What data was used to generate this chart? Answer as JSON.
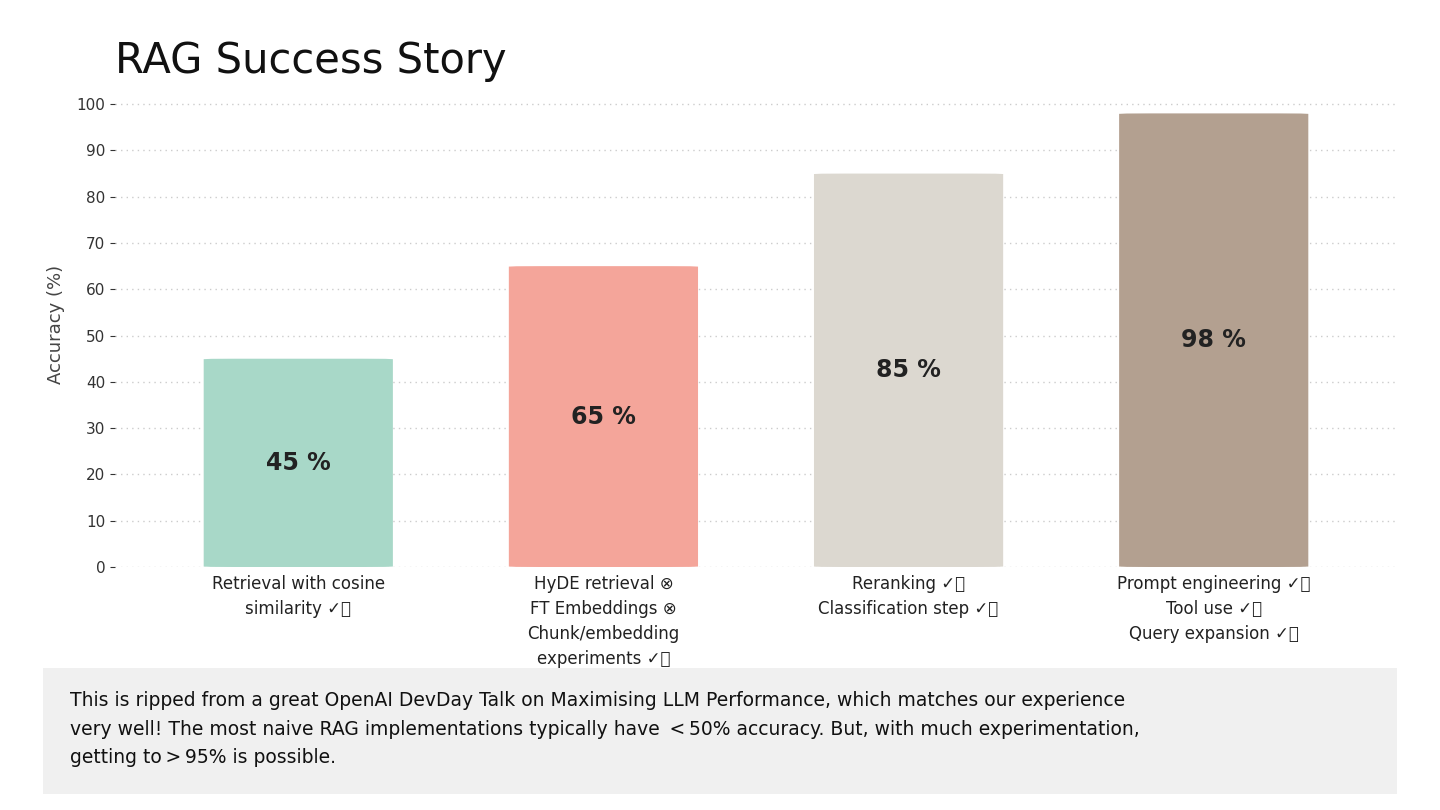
{
  "title": "RAG Success Story",
  "title_fontsize": 30,
  "title_fontweight": "normal",
  "values": [
    45,
    65,
    85,
    98
  ],
  "bar_colors": [
    "#a8d8c8",
    "#f4a59a",
    "#dcd8d0",
    "#b3a090"
  ],
  "bar_labels": [
    "45 %",
    "65 %",
    "85 %",
    "98 %"
  ],
  "bar_label_fontsize": 17,
  "ylabel": "Accuracy (%)",
  "ylim": [
    0,
    105
  ],
  "yticks": [
    0,
    10,
    20,
    30,
    40,
    50,
    60,
    70,
    80,
    90,
    100
  ],
  "footnote_line1": "This is ripped from a great OpenAI DevDay Talk on Maximising LLM Performance, which matches our experience",
  "footnote_line2": "very well! The most naive RAG implementations typically have  < 50% accuracy. But, with much experimentation,",
  "footnote_line3": "getting to > 95% is possible.",
  "footnote_fontsize": 13.5,
  "background_color": "#ffffff",
  "footnote_bg_color": "#f0f0f0",
  "grid_color": "#cccccc",
  "bar_width": 0.62,
  "label_fontsize": 12
}
